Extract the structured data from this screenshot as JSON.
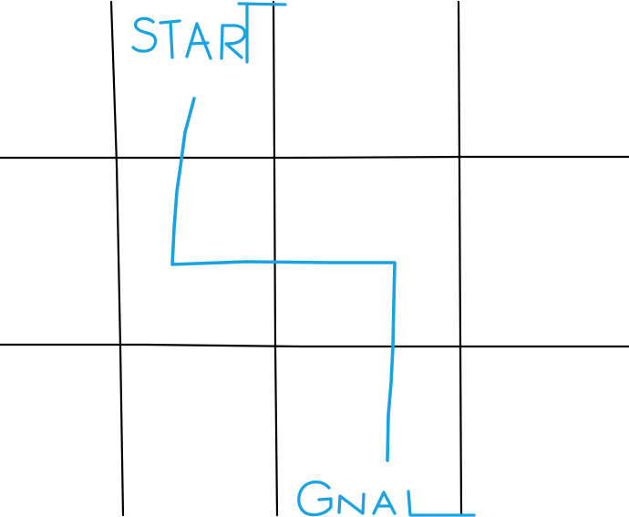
{
  "canvas": {
    "background": "#ffffff"
  },
  "colors": {
    "grid": "#000000",
    "ink": "#1aa3e0"
  },
  "labels": {
    "start": "STAR",
    "goal": "GNAL"
  },
  "grid": {
    "columns": 4,
    "rows": 3
  }
}
